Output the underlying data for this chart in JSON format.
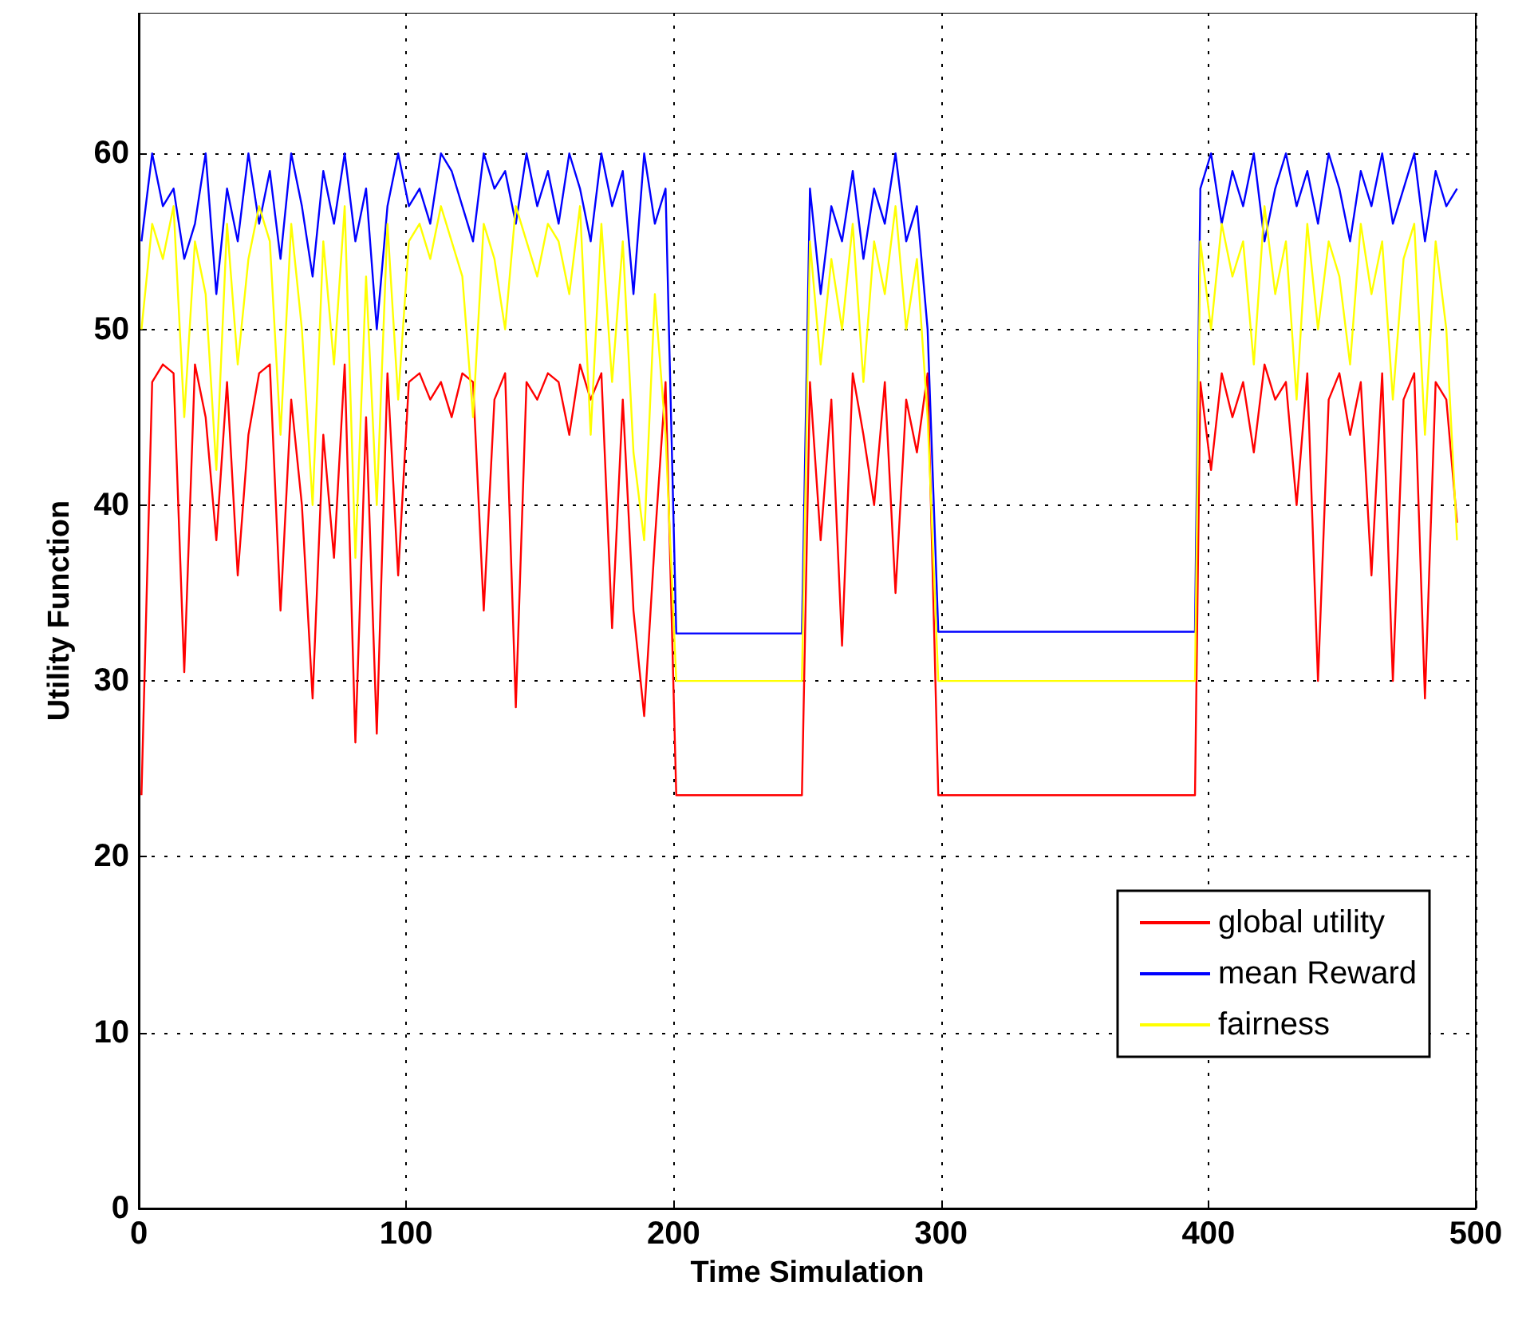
{
  "chart_data": {
    "type": "line",
    "xlabel": "Time Simulation",
    "ylabel": "Utility Function",
    "x": [
      1,
      5,
      9,
      13,
      17,
      21,
      25,
      29,
      33,
      37,
      41,
      45,
      49,
      53,
      57,
      61,
      65,
      69,
      73,
      77,
      81,
      85,
      89,
      93,
      97,
      101,
      105,
      109,
      113,
      117,
      121,
      125,
      129,
      133,
      137,
      141,
      145,
      149,
      153,
      157,
      161,
      165,
      169,
      173,
      177,
      181,
      185,
      189,
      193,
      197,
      201,
      248,
      251,
      255,
      259,
      263,
      267,
      271,
      275,
      279,
      283,
      287,
      291,
      295,
      299,
      395,
      397,
      401,
      405,
      409,
      413,
      417,
      421,
      425,
      429,
      433,
      437,
      441,
      445,
      449,
      453,
      457,
      461,
      465,
      469,
      473,
      477,
      481,
      485,
      489,
      493
    ],
    "series": [
      {
        "name": "global utility",
        "color": "#ff0000",
        "values": [
          23.5,
          47,
          48,
          47.5,
          30.5,
          48,
          45,
          38,
          47,
          36,
          44,
          47.5,
          48,
          34,
          46,
          40,
          29,
          44,
          37,
          48,
          26.5,
          45,
          27,
          47.5,
          36,
          47,
          47.5,
          46,
          47,
          45,
          47.5,
          47,
          34,
          46,
          47.5,
          28.5,
          47,
          46,
          47.5,
          47,
          44,
          48,
          46,
          47.5,
          33,
          46,
          34,
          28,
          38,
          47,
          23.5,
          23.5,
          47,
          38,
          46,
          32,
          47.5,
          44,
          40,
          47,
          35,
          46,
          43,
          47.5,
          23.5,
          23.5,
          47,
          42,
          47.5,
          45,
          47,
          43,
          48,
          46,
          47,
          40,
          47.5,
          30,
          46,
          47.5,
          44,
          47,
          36,
          47.5,
          30,
          46,
          47.5,
          29,
          47,
          46,
          39
        ]
      },
      {
        "name": "mean Reward",
        "color": "#0000ff",
        "values": [
          55,
          60,
          57,
          58,
          54,
          56,
          60,
          52,
          58,
          55,
          60,
          56,
          59,
          54,
          60,
          57,
          53,
          59,
          56,
          60,
          55,
          58,
          50,
          57,
          60,
          57,
          58,
          56,
          60,
          59,
          57,
          55,
          60,
          58,
          59,
          56,
          60,
          57,
          59,
          56,
          60,
          58,
          55,
          60,
          57,
          59,
          52,
          60,
          56,
          58,
          32.7,
          32.7,
          58,
          52,
          57,
          55,
          59,
          54,
          58,
          56,
          60,
          55,
          57,
          50,
          32.8,
          32.8,
          58,
          60,
          56,
          59,
          57,
          60,
          55,
          58,
          60,
          57,
          59,
          56,
          60,
          58,
          55,
          59,
          57,
          60,
          56,
          58,
          60,
          55,
          59,
          57,
          58
        ]
      },
      {
        "name": "fairness",
        "color": "#ffff00",
        "values": [
          50,
          56,
          54,
          57,
          45,
          55,
          52,
          42,
          56,
          48,
          54,
          57,
          55,
          44,
          56,
          50,
          40,
          55,
          48,
          57,
          37,
          53,
          40,
          56,
          46,
          55,
          56,
          54,
          57,
          55,
          53,
          45,
          56,
          54,
          50,
          57,
          55,
          53,
          56,
          55,
          52,
          57,
          44,
          56,
          47,
          55,
          43,
          38,
          52,
          44,
          30,
          30,
          55,
          48,
          54,
          50,
          56,
          47,
          55,
          52,
          57,
          50,
          54,
          45,
          30,
          30,
          55,
          50,
          56,
          53,
          55,
          48,
          57,
          52,
          55,
          46,
          56,
          50,
          55,
          53,
          48,
          56,
          52,
          55,
          46,
          54,
          56,
          44,
          55,
          50,
          38
        ]
      }
    ],
    "xlim": [
      0,
      500
    ],
    "xticks": [
      0,
      100,
      200,
      300,
      400,
      500
    ],
    "ylim": [
      0,
      68
    ],
    "yticks": [
      0,
      10,
      20,
      30,
      40,
      50,
      60
    ],
    "grid": true,
    "legend": "bottom right",
    "marker": "none",
    "line_style": "solid"
  }
}
